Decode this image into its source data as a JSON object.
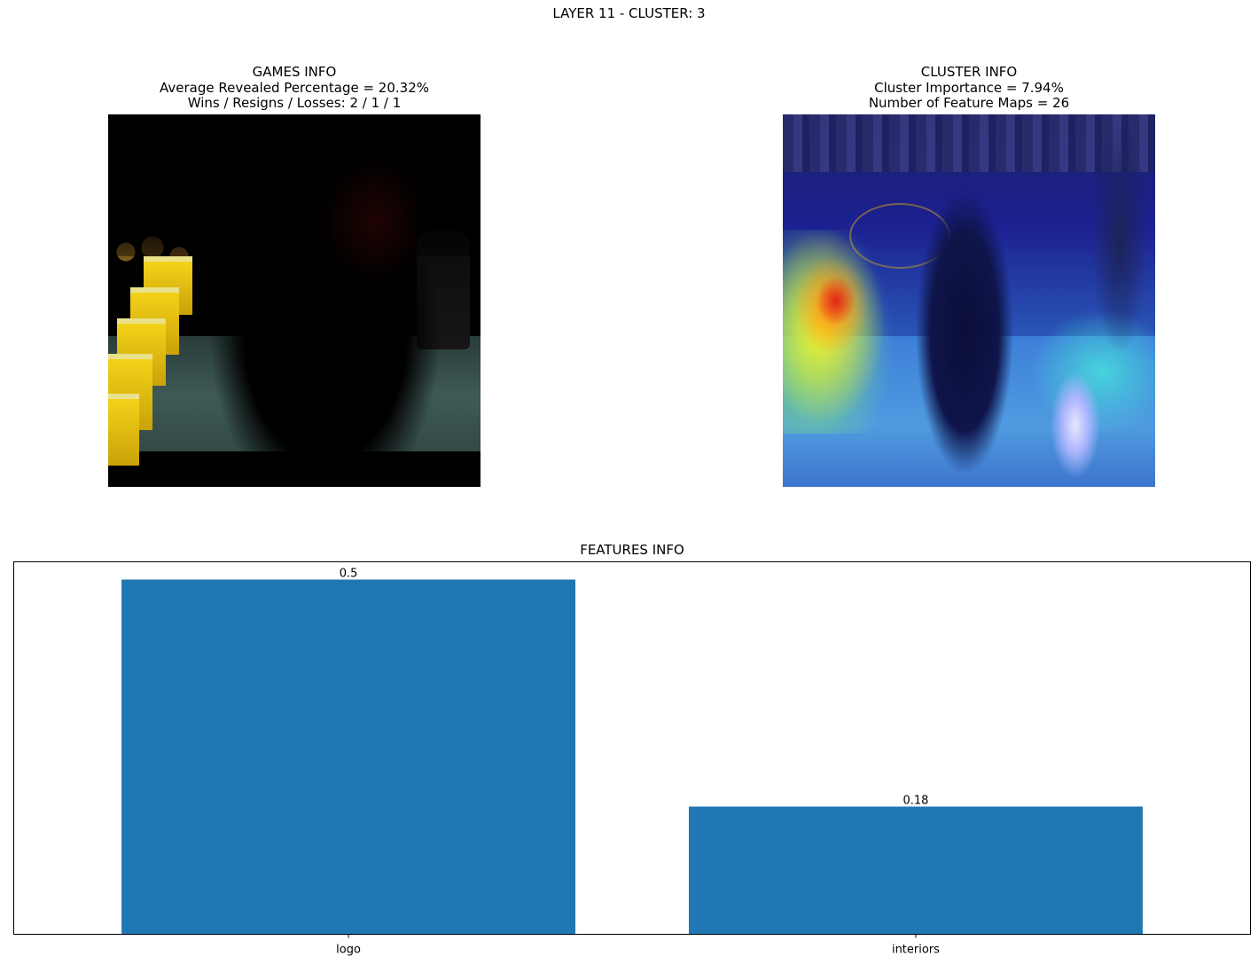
{
  "suptitle": "LAYER 11 - CLUSTER: 3",
  "games_info": {
    "title": "GAMES INFO",
    "line1": "Average Revealed Percentage = 20.32%",
    "line2": "Wins / Resigns / Losses: 2 / 1 / 1"
  },
  "cluster_info": {
    "title": "CLUSTER INFO",
    "line1": "Cluster Importance = 7.94%",
    "line2": "Number of Feature Maps = 26"
  },
  "chart_data": {
    "type": "bar",
    "title": "FEATURES INFO",
    "categories": [
      "logo",
      "interiors"
    ],
    "values": [
      0.5,
      0.18
    ],
    "value_labels": [
      "0.5",
      "0.18"
    ],
    "xlabel": "",
    "ylabel": "",
    "ylim": [
      0,
      0.525
    ],
    "bar_color": "#1f77b4",
    "grid": false,
    "yticks_visible": false
  }
}
